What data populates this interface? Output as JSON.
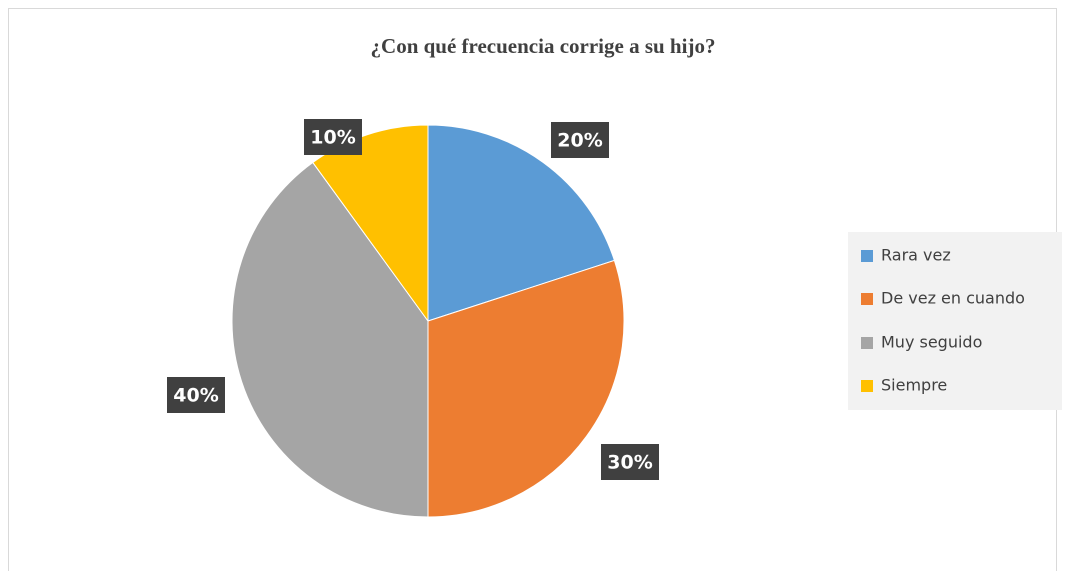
{
  "chart_data": {
    "type": "pie",
    "title": "¿Con qué frecuencia corrige a su hijo?",
    "categories": [
      "Rara vez",
      "De vez en cuando",
      "Muy seguido",
      "Siempre"
    ],
    "values": [
      20,
      30,
      40,
      10
    ],
    "value_labels": [
      "20%",
      "30%",
      "40%",
      "10%"
    ],
    "colors": [
      "#5b9bd5",
      "#ed7d31",
      "#a5a5a5",
      "#ffc000"
    ],
    "legend": "right"
  }
}
